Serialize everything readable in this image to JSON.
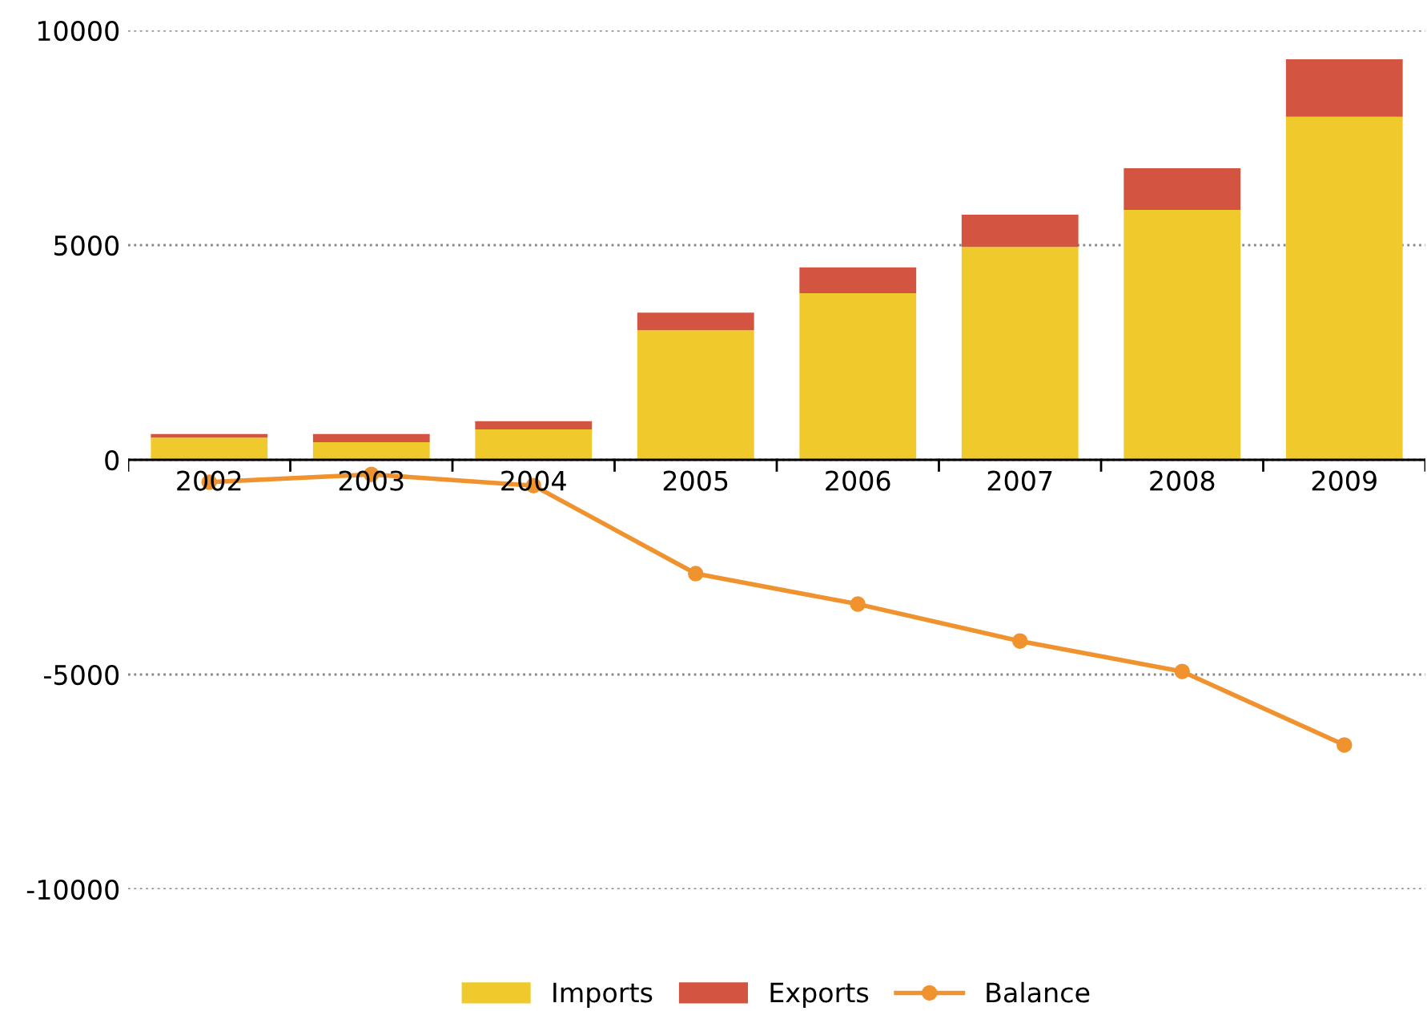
{
  "chart_data": {
    "type": "bar",
    "stacked": true,
    "categories": [
      "2002",
      "2003",
      "2004",
      "2005",
      "2006",
      "2007",
      "2008",
      "2009"
    ],
    "series": [
      {
        "name": "Imports",
        "color": "#f0ca2c",
        "values": [
          520,
          410,
          710,
          3020,
          3880,
          4960,
          5820,
          7990
        ]
      },
      {
        "name": "Exports",
        "color": "#d35440",
        "values": [
          80,
          190,
          190,
          410,
          600,
          750,
          970,
          1340
        ]
      },
      {
        "name": "Balance",
        "type": "line",
        "color": "#f0922e",
        "marker": "circle",
        "values": [
          -520,
          -340,
          -600,
          -2650,
          -3360,
          -4220,
          -4930,
          -6640
        ]
      }
    ],
    "ylim": [
      -10000,
      10000
    ],
    "yticks": [
      -10000,
      -5000,
      0,
      5000,
      10000
    ],
    "grid": "y",
    "legend": "bottom"
  }
}
